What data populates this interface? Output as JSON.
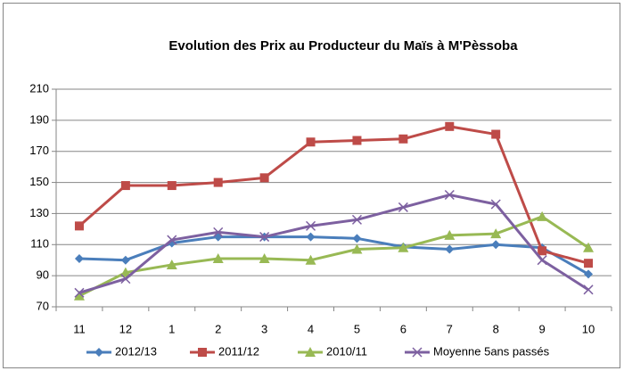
{
  "chart_data": {
    "type": "line",
    "title": "Evolution des Prix au Producteur du Maïs à M'Pèssoba",
    "categories": [
      "11",
      "12",
      "1",
      "2",
      "3",
      "4",
      "5",
      "6",
      "7",
      "8",
      "9",
      "10"
    ],
    "series": [
      {
        "name": "2012/13",
        "color": "#4a7ebb",
        "marker": "diamond",
        "values": [
          101,
          100,
          111,
          115,
          115,
          115,
          114,
          108.5,
          107,
          110,
          108,
          91
        ]
      },
      {
        "name": "2011/12",
        "color": "#be4b48",
        "marker": "square",
        "values": [
          122,
          148,
          148,
          150,
          153,
          176,
          177,
          178,
          186,
          181,
          106,
          98
        ]
      },
      {
        "name": "2010/11",
        "color": "#98b954",
        "marker": "triangle",
        "values": [
          77,
          92,
          97,
          101,
          101,
          100,
          107,
          108,
          116,
          117,
          128,
          108
        ]
      },
      {
        "name": "Moyenne 5ans passés",
        "color": "#7d60a0",
        "marker": "x",
        "values": [
          79,
          88,
          113,
          118,
          115,
          122,
          126,
          134,
          142,
          136,
          100,
          81
        ]
      }
    ],
    "ylim": [
      70,
      210
    ],
    "yticks": [
      70,
      90,
      110,
      130,
      150,
      170,
      190,
      210
    ],
    "grid": true,
    "legend": "bottom"
  }
}
